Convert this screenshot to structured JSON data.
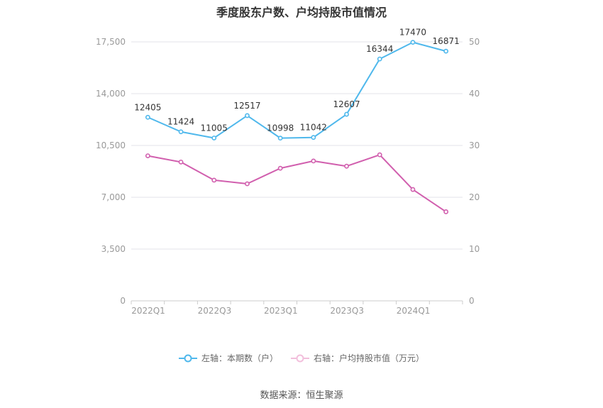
{
  "chart_data": {
    "type": "line",
    "title": "季度股东户数、户均持股市值情况",
    "x": [
      "2022Q1",
      "2022Q2",
      "2022Q3",
      "2022Q4",
      "2023Q1",
      "2023Q2",
      "2023Q3",
      "2023Q4",
      "2024Q1",
      "2024Q2"
    ],
    "x_tick_labels": [
      "2022Q1",
      "2022Q3",
      "2023Q1",
      "2023Q3",
      "2024Q1"
    ],
    "left_axis": {
      "ylim": [
        0,
        17500
      ],
      "ticks": [
        "0",
        "3,500",
        "7,000",
        "10,500",
        "14,000",
        "17,500"
      ]
    },
    "right_axis": {
      "ylim": [
        0,
        50
      ],
      "ticks": [
        "0",
        "10",
        "20",
        "30",
        "40",
        "50"
      ]
    },
    "series": [
      {
        "name": "左轴：本期数（户）",
        "axis": "left",
        "color": "#4fb8ec",
        "values": [
          12405,
          11424,
          11005,
          12517,
          10998,
          11042,
          12607,
          16344,
          17470,
          16871
        ],
        "labels": [
          "12405",
          "11424",
          "11005",
          "12517",
          "10998",
          "11042",
          "12607",
          "16344",
          "17470",
          "16871"
        ]
      },
      {
        "name": "右轴：户均持股市值（万元）",
        "axis": "right",
        "color": "#d15fae",
        "values": [
          28.0,
          26.8,
          23.3,
          22.6,
          25.6,
          27.0,
          26.0,
          28.2,
          21.5,
          17.2
        ]
      }
    ],
    "grid": true,
    "legend_position": "bottom"
  },
  "source_text": "数据来源：恒生聚源"
}
